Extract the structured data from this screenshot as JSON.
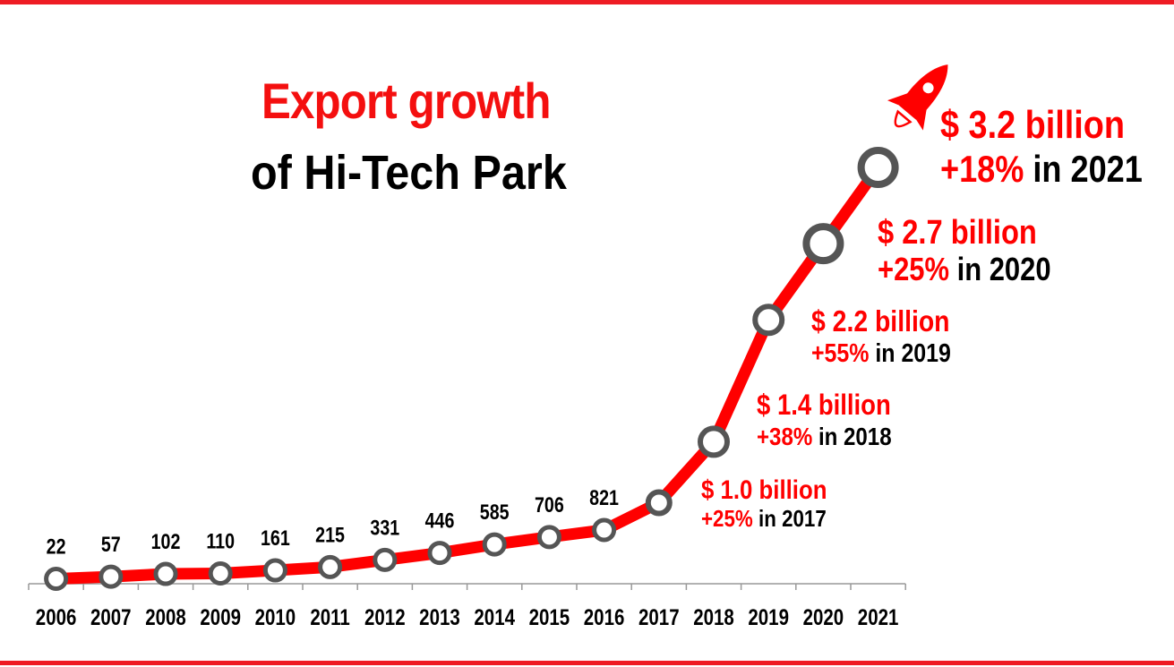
{
  "title": {
    "line1": "Export growth",
    "line2": "of Hi-Tech Park"
  },
  "colors": {
    "line": "#ff0000",
    "accent": "#ee1c24",
    "marker": "#555555",
    "text": "#000000"
  },
  "chart_data": {
    "type": "line",
    "x": [
      "2006",
      "2007",
      "2008",
      "2009",
      "2010",
      "2011",
      "2012",
      "2013",
      "2014",
      "2015",
      "2016",
      "2017",
      "2018",
      "2019",
      "2020",
      "2021"
    ],
    "values": [
      22,
      57,
      102,
      110,
      161,
      215,
      331,
      446,
      585,
      706,
      821,
      1000,
      1400,
      2200,
      2700,
      3200
    ],
    "point_labels": [
      "22",
      "57",
      "102",
      "110",
      "161",
      "215",
      "331",
      "446",
      "585",
      "706",
      "821",
      "",
      "",
      "",
      "",
      ""
    ],
    "annotations": [
      {
        "x": "2017",
        "amount": "$ 1.0 billion",
        "growth": "+25%",
        "period": "in 2017"
      },
      {
        "x": "2018",
        "amount": "$ 1.4 billion",
        "growth": "+38%",
        "period": "in 2018"
      },
      {
        "x": "2019",
        "amount": "$ 2.2 billion",
        "growth": "+55%",
        "period": "in 2019"
      },
      {
        "x": "2020",
        "amount": "$ 2.7 billion",
        "growth": "+25%",
        "period": "in 2020"
      },
      {
        "x": "2021",
        "amount": "$ 3.2 billion",
        "growth": "+18%",
        "period": "in 2021"
      }
    ],
    "ylim": [
      0,
      3300
    ],
    "grid": false,
    "legend": "none",
    "decoration": "rocket-icon"
  }
}
